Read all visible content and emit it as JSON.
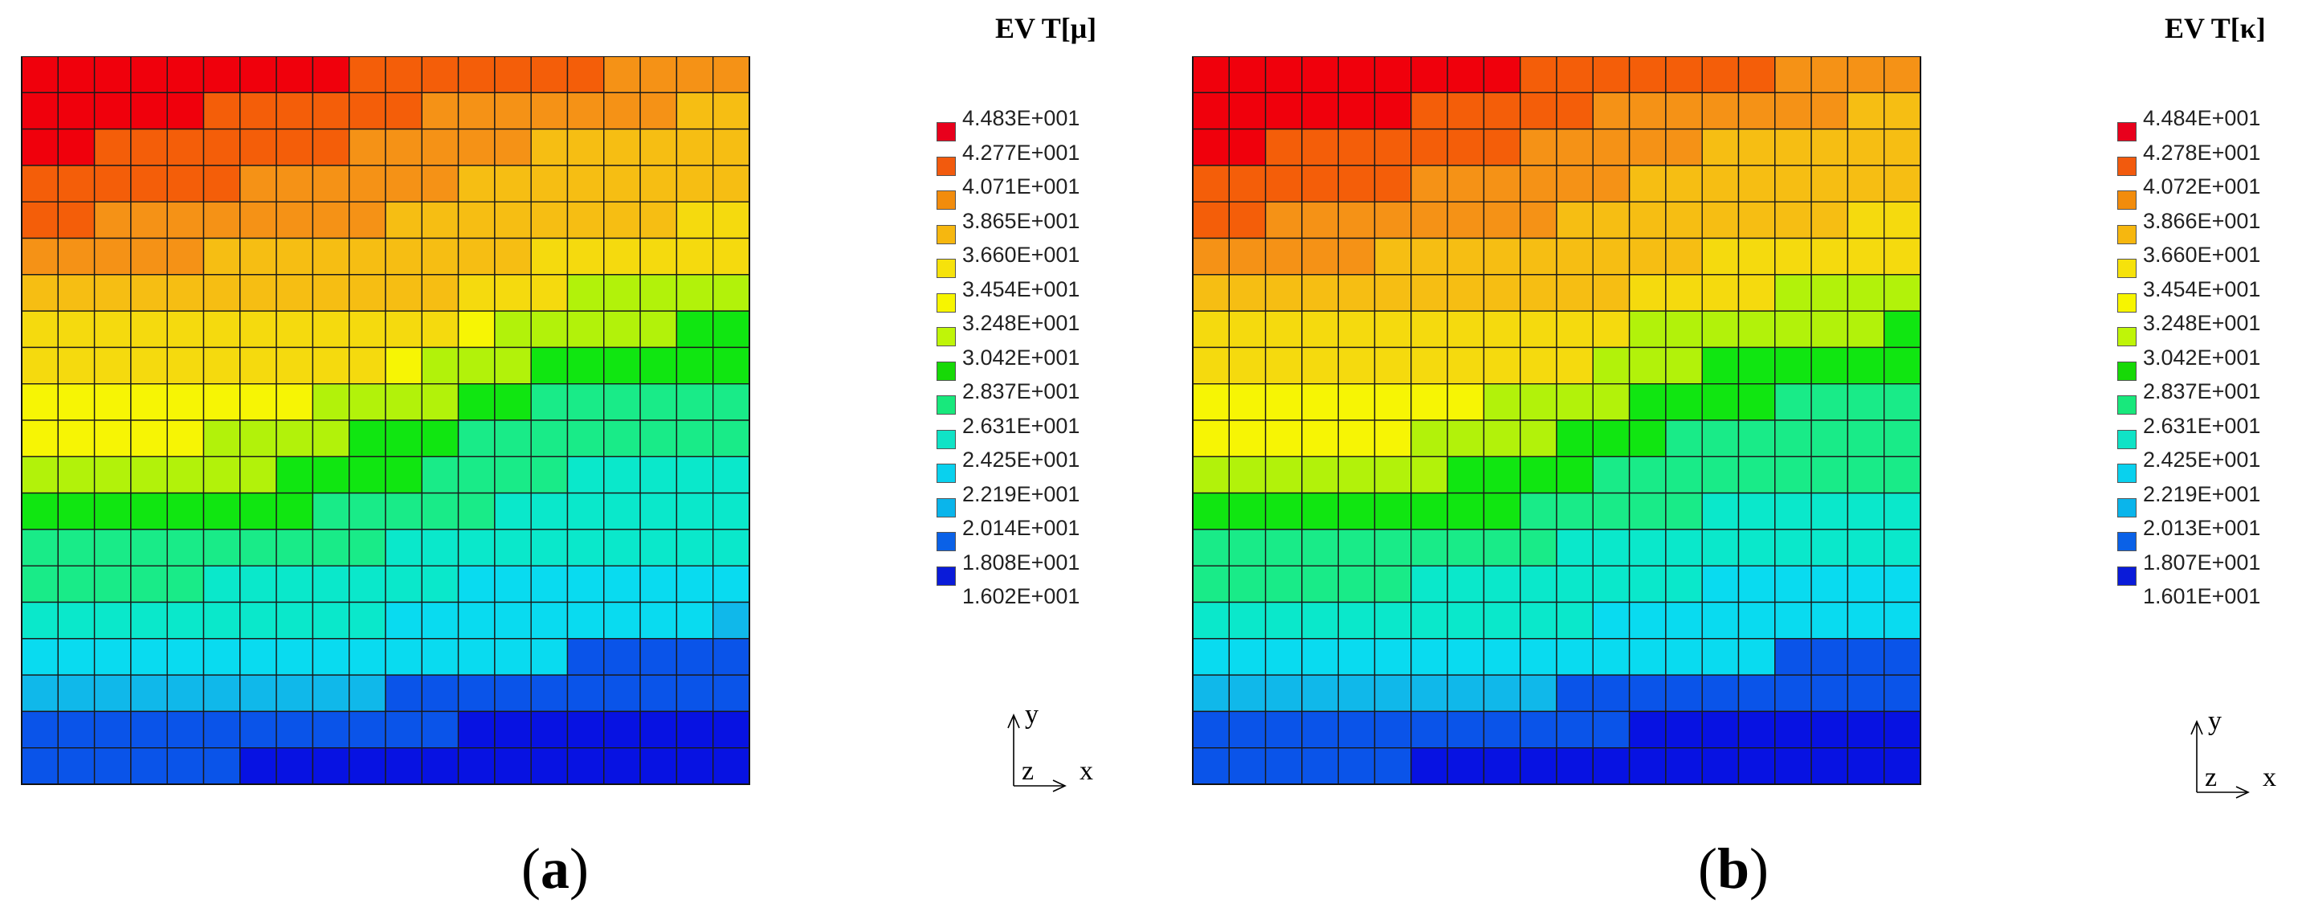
{
  "chart_data": [
    {
      "type": "heatmap",
      "panel": "a",
      "caption_open": "(",
      "caption_letter": "a",
      "caption_close": ")",
      "legend_title": "EV T[μ]",
      "legend_values": [
        "4.483E+001",
        "4.277E+001",
        "4.071E+001",
        "3.865E+001",
        "3.660E+001",
        "3.454E+001",
        "3.248E+001",
        "3.042E+001",
        "2.837E+001",
        "2.631E+001",
        "2.425E+001",
        "2.219E+001",
        "2.014E+001",
        "1.808E+001",
        "1.602E+001"
      ],
      "axis_labels": {
        "y": "y",
        "z": "z",
        "x": "x"
      },
      "grid": [
        [
          0,
          0,
          0,
          0,
          0,
          0,
          0,
          0,
          0,
          1,
          1,
          1,
          1,
          1,
          1,
          1,
          2,
          2,
          2,
          2
        ],
        [
          0,
          0,
          0,
          0,
          0,
          1,
          1,
          1,
          1,
          1,
          1,
          2,
          2,
          2,
          2,
          2,
          2,
          2,
          3,
          3
        ],
        [
          0,
          0,
          1,
          1,
          1,
          1,
          1,
          1,
          1,
          2,
          2,
          2,
          2,
          2,
          3,
          3,
          3,
          3,
          3,
          3
        ],
        [
          1,
          1,
          1,
          1,
          1,
          1,
          2,
          2,
          2,
          2,
          2,
          2,
          3,
          3,
          3,
          3,
          3,
          3,
          3,
          3
        ],
        [
          1,
          1,
          2,
          2,
          2,
          2,
          2,
          2,
          2,
          2,
          3,
          3,
          3,
          3,
          3,
          3,
          3,
          3,
          4,
          4
        ],
        [
          2,
          2,
          2,
          2,
          2,
          3,
          3,
          3,
          3,
          3,
          3,
          3,
          3,
          3,
          4,
          4,
          4,
          4,
          4,
          4
        ],
        [
          3,
          3,
          3,
          3,
          3,
          3,
          3,
          3,
          3,
          3,
          3,
          3,
          4,
          4,
          4,
          6,
          6,
          6,
          6,
          6
        ],
        [
          4,
          4,
          4,
          4,
          4,
          4,
          4,
          4,
          4,
          4,
          4,
          4,
          5,
          6,
          6,
          6,
          6,
          6,
          7,
          7
        ],
        [
          4,
          4,
          4,
          4,
          4,
          4,
          4,
          4,
          4,
          4,
          5,
          6,
          6,
          6,
          7,
          7,
          7,
          7,
          7,
          7
        ],
        [
          5,
          5,
          5,
          5,
          5,
          5,
          5,
          5,
          6,
          6,
          6,
          6,
          7,
          7,
          8,
          8,
          8,
          8,
          8,
          8
        ],
        [
          5,
          5,
          5,
          5,
          5,
          6,
          6,
          6,
          6,
          7,
          7,
          7,
          8,
          8,
          8,
          8,
          8,
          8,
          8,
          8
        ],
        [
          6,
          6,
          6,
          6,
          6,
          6,
          6,
          7,
          7,
          7,
          7,
          8,
          8,
          8,
          8,
          9,
          9,
          9,
          9,
          9
        ],
        [
          7,
          7,
          7,
          7,
          7,
          7,
          7,
          7,
          8,
          8,
          8,
          8,
          8,
          9,
          9,
          9,
          9,
          9,
          9,
          9
        ],
        [
          8,
          8,
          8,
          8,
          8,
          8,
          8,
          8,
          8,
          8,
          9,
          9,
          9,
          9,
          9,
          9,
          9,
          9,
          9,
          9
        ],
        [
          8,
          8,
          8,
          8,
          8,
          9,
          9,
          9,
          9,
          9,
          9,
          9,
          10,
          10,
          10,
          10,
          10,
          10,
          10,
          10
        ],
        [
          9,
          9,
          9,
          9,
          9,
          9,
          9,
          9,
          9,
          9,
          10,
          10,
          10,
          10,
          10,
          10,
          10,
          10,
          10,
          11
        ],
        [
          10,
          10,
          10,
          10,
          10,
          10,
          10,
          10,
          10,
          10,
          10,
          10,
          10,
          10,
          10,
          12,
          12,
          12,
          12,
          12
        ],
        [
          11,
          11,
          11,
          11,
          11,
          11,
          11,
          11,
          11,
          11,
          12,
          12,
          12,
          12,
          12,
          12,
          12,
          12,
          12,
          12
        ],
        [
          12,
          12,
          12,
          12,
          12,
          12,
          12,
          12,
          12,
          12,
          12,
          12,
          13,
          13,
          13,
          13,
          13,
          13,
          13,
          13
        ],
        [
          12,
          12,
          12,
          12,
          12,
          12,
          13,
          13,
          13,
          13,
          13,
          13,
          13,
          13,
          13,
          13,
          13,
          13,
          13,
          13
        ]
      ]
    },
    {
      "type": "heatmap",
      "panel": "b",
      "caption_open": "(",
      "caption_letter": "b",
      "caption_close": ")",
      "legend_title": "EV T[κ]",
      "legend_values": [
        "4.484E+001",
        "4.278E+001",
        "4.072E+001",
        "3.866E+001",
        "3.660E+001",
        "3.454E+001",
        "3.248E+001",
        "3.042E+001",
        "2.837E+001",
        "2.631E+001",
        "2.425E+001",
        "2.219E+001",
        "2.013E+001",
        "1.807E+001",
        "1.601E+001"
      ],
      "axis_labels": {
        "y": "y",
        "z": "z",
        "x": "x"
      },
      "grid": [
        [
          0,
          0,
          0,
          0,
          0,
          0,
          0,
          0,
          0,
          1,
          1,
          1,
          1,
          1,
          1,
          1,
          2,
          2,
          2,
          2
        ],
        [
          0,
          0,
          0,
          0,
          0,
          0,
          1,
          1,
          1,
          1,
          1,
          2,
          2,
          2,
          2,
          2,
          2,
          2,
          3,
          3
        ],
        [
          0,
          0,
          1,
          1,
          1,
          1,
          1,
          1,
          1,
          2,
          2,
          2,
          2,
          2,
          3,
          3,
          3,
          3,
          3,
          3
        ],
        [
          1,
          1,
          1,
          1,
          1,
          1,
          2,
          2,
          2,
          2,
          2,
          2,
          3,
          3,
          3,
          3,
          3,
          3,
          3,
          3
        ],
        [
          1,
          1,
          2,
          2,
          2,
          2,
          2,
          2,
          2,
          2,
          3,
          3,
          3,
          3,
          3,
          3,
          3,
          3,
          4,
          4
        ],
        [
          2,
          2,
          2,
          2,
          2,
          3,
          3,
          3,
          3,
          3,
          3,
          3,
          3,
          3,
          4,
          4,
          4,
          4,
          4,
          4
        ],
        [
          3,
          3,
          3,
          3,
          3,
          3,
          3,
          3,
          3,
          3,
          3,
          3,
          4,
          4,
          4,
          4,
          6,
          6,
          6,
          6
        ],
        [
          4,
          4,
          4,
          4,
          4,
          4,
          4,
          4,
          4,
          4,
          4,
          4,
          6,
          6,
          6,
          6,
          6,
          6,
          6,
          7
        ],
        [
          4,
          4,
          4,
          4,
          4,
          4,
          4,
          4,
          4,
          4,
          4,
          6,
          6,
          6,
          7,
          7,
          7,
          7,
          7,
          7
        ],
        [
          5,
          5,
          5,
          5,
          5,
          5,
          5,
          5,
          6,
          6,
          6,
          6,
          7,
          7,
          7,
          7,
          8,
          8,
          8,
          8
        ],
        [
          5,
          5,
          5,
          5,
          5,
          5,
          6,
          6,
          6,
          6,
          7,
          7,
          7,
          8,
          8,
          8,
          8,
          8,
          8,
          8
        ],
        [
          6,
          6,
          6,
          6,
          6,
          6,
          6,
          7,
          7,
          7,
          7,
          8,
          8,
          8,
          8,
          8,
          8,
          8,
          8,
          8
        ],
        [
          7,
          7,
          7,
          7,
          7,
          7,
          7,
          7,
          7,
          8,
          8,
          8,
          8,
          8,
          9,
          9,
          9,
          9,
          9,
          9
        ],
        [
          8,
          8,
          8,
          8,
          8,
          8,
          8,
          8,
          8,
          8,
          9,
          9,
          9,
          9,
          9,
          9,
          9,
          9,
          9,
          9
        ],
        [
          8,
          8,
          8,
          8,
          8,
          8,
          9,
          9,
          9,
          9,
          9,
          9,
          9,
          9,
          10,
          10,
          10,
          10,
          10,
          10
        ],
        [
          9,
          9,
          9,
          9,
          9,
          9,
          9,
          9,
          9,
          9,
          9,
          10,
          10,
          10,
          10,
          10,
          10,
          10,
          10,
          10
        ],
        [
          10,
          10,
          10,
          10,
          10,
          10,
          10,
          10,
          10,
          10,
          10,
          10,
          10,
          10,
          10,
          10,
          12,
          12,
          12,
          12
        ],
        [
          11,
          11,
          11,
          11,
          11,
          11,
          11,
          11,
          11,
          11,
          12,
          12,
          12,
          12,
          12,
          12,
          12,
          12,
          12,
          12
        ],
        [
          12,
          12,
          12,
          12,
          12,
          12,
          12,
          12,
          12,
          12,
          12,
          12,
          13,
          13,
          13,
          13,
          13,
          13,
          13,
          13
        ],
        [
          12,
          12,
          12,
          12,
          12,
          12,
          13,
          13,
          13,
          13,
          13,
          13,
          13,
          13,
          13,
          13,
          13,
          13,
          13,
          13
        ]
      ]
    }
  ],
  "legend_colors": [
    "#e8001c",
    "#f25a0d",
    "#f28c0c",
    "#f6b70f",
    "#f6e20b",
    "#f7f500",
    "#bff508",
    "#17d907",
    "#18e87c",
    "#10e3c6",
    "#09d1ee",
    "#0ab5eb",
    "#0a61e7",
    "#0a1bd9",
    "#0000e0"
  ],
  "heatmap_colors": [
    "#f0000c",
    "#f45e09",
    "#f59216",
    "#f6be13",
    "#f5da0e",
    "#f7f504",
    "#b2f20a",
    "#10e611",
    "#19eb88",
    "#0ae8cb",
    "#09dbf0",
    "#10b8ea",
    "#0a54e9",
    "#0712e2"
  ]
}
